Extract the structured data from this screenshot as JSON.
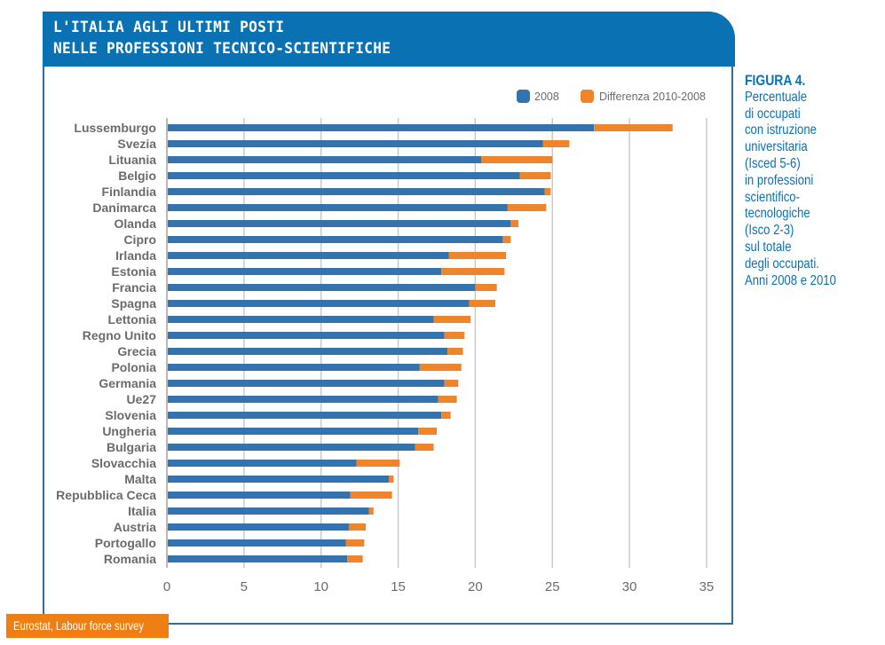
{
  "header": {
    "title_line1": "L'ITALIA AGLI ULTIMI POSTI",
    "title_line2": "NELLE PROFESSIONI TECNICO-SCIENTIFICHE"
  },
  "caption": {
    "figure": "FIGURA 4.",
    "lines": [
      "Percentuale",
      "di occupati",
      "con istruzione",
      "universitaria",
      "(Isced 5-6)",
      "in professioni",
      "scientifico-",
      "tecnologiche",
      "(Isco 2-3)",
      "sul totale",
      "degli occupati.",
      "Anni 2008 e 2010"
    ]
  },
  "source": "Eurostat, Labour force survey",
  "colors": {
    "header": "#0a71b3",
    "series_2008": "#3473ad",
    "series_diff": "#ef842a",
    "source_badge": "#ef7f12"
  },
  "chart_data": {
    "type": "bar",
    "orientation": "horizontal",
    "stacked": true,
    "title": "L'Italia agli ultimi posti nelle professioni tecnico-scientifiche",
    "xlabel": "",
    "ylabel": "",
    "xlim": [
      0,
      35
    ],
    "xticks": [
      0,
      5,
      10,
      15,
      20,
      25,
      30,
      35
    ],
    "grid": true,
    "legend_position": "top-right",
    "categories": [
      "Lussemburgo",
      "Svezia",
      "Lituania",
      "Belgio",
      "Finlandia",
      "Danimarca",
      "Olanda",
      "Cipro",
      "Irlanda",
      "Estonia",
      "Francia",
      "Spagna",
      "Lettonia",
      "Regno Unito",
      "Grecia",
      "Polonia",
      "Germania",
      "Ue27",
      "Slovenia",
      "Ungheria",
      "Bulgaria",
      "Slovacchia",
      "Malta",
      "Repubblica Ceca",
      "Italia",
      "Austria",
      "Portogallo",
      "Romania"
    ],
    "series": [
      {
        "name": "2008",
        "values": [
          27.7,
          24.4,
          20.4,
          22.9,
          24.5,
          22.1,
          22.3,
          21.8,
          18.3,
          17.8,
          20.0,
          19.6,
          17.3,
          18.0,
          18.2,
          16.4,
          18.0,
          17.6,
          17.8,
          16.3,
          16.1,
          12.3,
          14.4,
          11.9,
          13.1,
          11.8,
          11.6,
          11.7
        ]
      },
      {
        "name": "Differenza 2010-2008",
        "values": [
          5.1,
          1.7,
          4.6,
          2.0,
          0.4,
          2.5,
          0.5,
          0.5,
          3.7,
          4.1,
          1.4,
          1.7,
          2.4,
          1.3,
          1.0,
          2.7,
          0.9,
          1.2,
          0.6,
          1.2,
          1.2,
          2.8,
          0.3,
          2.7,
          0.3,
          1.1,
          1.2,
          1.0
        ]
      }
    ]
  }
}
